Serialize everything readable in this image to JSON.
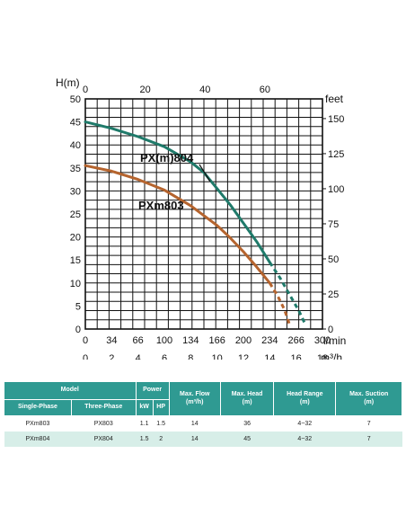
{
  "chart_data": {
    "type": "line",
    "ylabel": "H(m)",
    "ylabel_right": "feet",
    "xlabel": "l/min",
    "xlabel_secondary": "m³/h",
    "ylim": [
      0,
      50
    ],
    "yticks": [
      "0",
      "5",
      "10",
      "15",
      "20",
      "25",
      "30",
      "35",
      "40",
      "45",
      "50"
    ],
    "yticks_right": [
      "0",
      "25",
      "50",
      "75",
      "100",
      "125",
      "150"
    ],
    "xticks_top": [
      "0",
      "20",
      "40",
      "60"
    ],
    "xticks_lpm": [
      "0",
      "34",
      "66",
      "100",
      "134",
      "166",
      "200",
      "234",
      "266",
      "300"
    ],
    "xticks_m3h": [
      "0",
      "2",
      "4",
      "6",
      "8",
      "10",
      "12",
      "14",
      "16",
      "18"
    ],
    "xlim_m3h": [
      0,
      18
    ],
    "grid": true,
    "series": [
      {
        "name": "PX(m)804",
        "color": "#1f7a6a",
        "x_m3h": [
          0,
          2,
          4,
          6,
          8,
          9,
          10,
          11,
          12,
          13,
          14,
          14.8,
          15.5,
          16.2,
          16.7
        ],
        "y_m": [
          45,
          43.6,
          41.8,
          39.6,
          36.3,
          34,
          30.5,
          27,
          23,
          19,
          14.5,
          11,
          7.5,
          4,
          1
        ],
        "solid_until_m3h": 14
      },
      {
        "name": "PXm803",
        "color": "#b5642e",
        "x_m3h": [
          0,
          2,
          4,
          6,
          8,
          10,
          11,
          12,
          13,
          14,
          14.6,
          15.1,
          15.5
        ],
        "y_m": [
          35.5,
          34.3,
          32.5,
          30.2,
          26.8,
          22.5,
          19.8,
          16.8,
          13.5,
          10,
          7.2,
          4.3,
          1
        ],
        "solid_until_m3h": 14
      }
    ]
  },
  "table": {
    "header_model": "Model",
    "header_single": "Single-Phase",
    "header_three": "Three-Phase",
    "header_power": "Power",
    "header_kw": "kW",
    "header_hp": "HP",
    "header_flow": "Max. Flow",
    "header_flow_unit": "(m³/h)",
    "header_head": "Max. Head",
    "header_head_unit": "(m)",
    "header_range": "Head Range",
    "header_range_unit": "(m)",
    "header_suction": "Max. Suction",
    "header_suction_unit": "(m)",
    "rows": [
      {
        "single": "PXm803",
        "three": "PX803",
        "kw": "1.1",
        "hp": "1.5",
        "flow": "14",
        "head": "36",
        "range": "4~32",
        "suction": "7"
      },
      {
        "single": "PXm804",
        "three": "PX804",
        "kw": "1.5",
        "hp": "2",
        "flow": "14",
        "head": "45",
        "range": "4~32",
        "suction": "7"
      }
    ]
  }
}
